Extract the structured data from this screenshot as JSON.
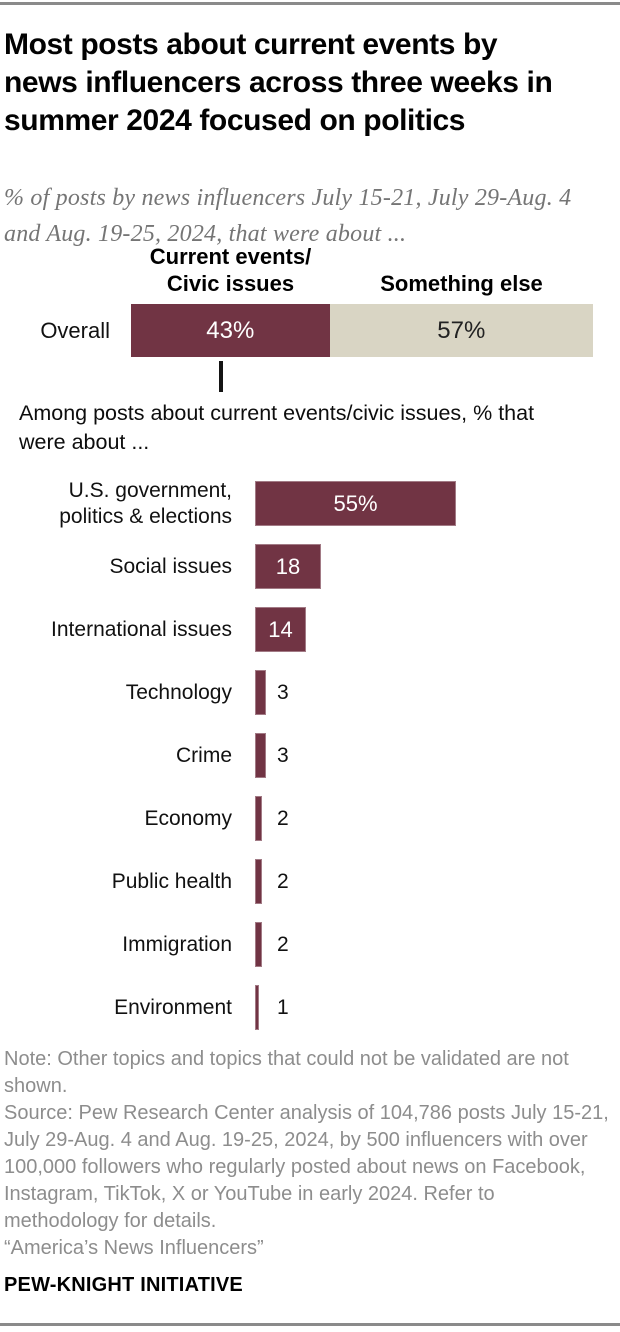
{
  "header": {
    "title_lines": [
      "Most posts about current events by",
      "news influencers across three weeks in",
      "summer 2024 focused on politics"
    ],
    "subtitle_lines": [
      "% of posts by news influencers July 15-21, July 29-Aug. 4",
      "and Aug. 19-25, 2024, that were about ..."
    ]
  },
  "colors": {
    "maroon": "#713444",
    "beige": "#d9d5c4",
    "note_gray": "#8d8d8d",
    "rule_gray": "#8a8a8a"
  },
  "chart_data": [
    {
      "type": "bar",
      "subtype": "stacked-horizontal",
      "categories": [
        "Overall"
      ],
      "legend_left_lines": [
        "Current events/",
        "Civic issues"
      ],
      "legend_right": "Something else",
      "series": [
        {
          "name": "Current events/Civic issues",
          "values": [
            43
          ],
          "label": "43%",
          "color": "#713444"
        },
        {
          "name": "Something else",
          "values": [
            57
          ],
          "label": "57%",
          "color": "#d9d5c4"
        }
      ],
      "xlim": [
        0,
        100
      ],
      "legend_position": "top",
      "grid": false
    },
    {
      "type": "bar",
      "intro_lines": [
        "Among posts about current events/civic issues, % that",
        "were about ..."
      ],
      "categories": [
        "U.S. government, politics & elections",
        "Social issues",
        "International issues",
        "Technology",
        "Crime",
        "Economy",
        "Public health",
        "Immigration",
        "Environment"
      ],
      "category_lines": [
        [
          "U.S. government,",
          "politics & elections"
        ],
        [
          "Social issues"
        ],
        [
          "International issues"
        ],
        [
          "Technology"
        ],
        [
          "Crime"
        ],
        [
          "Economy"
        ],
        [
          "Public health"
        ],
        [
          "Immigration"
        ],
        [
          "Environment"
        ]
      ],
      "values": [
        55,
        18,
        14,
        3,
        3,
        2,
        2,
        2,
        1
      ],
      "value_labels": [
        "55%",
        "18",
        "14",
        "3",
        "3",
        "2",
        "2",
        "2",
        "1"
      ],
      "bar_color": "#713444",
      "xlim": [
        0,
        60
      ],
      "grid": false
    }
  ],
  "footer": {
    "lines": [
      "Note: Other topics and topics that could not be validated are not",
      "shown.",
      "Source: Pew Research Center analysis of 104,786 posts July 15-21,",
      "July 29-Aug. 4 and Aug. 19-25, 2024, by 500 influencers with over",
      "100,000 followers who regularly posted about news on Facebook,",
      "Instagram, TikTok, X or YouTube in early 2024. Refer to",
      "methodology for details.",
      "“America’s News Influencers”"
    ],
    "brand": "PEW-KNIGHT INITIATIVE"
  }
}
